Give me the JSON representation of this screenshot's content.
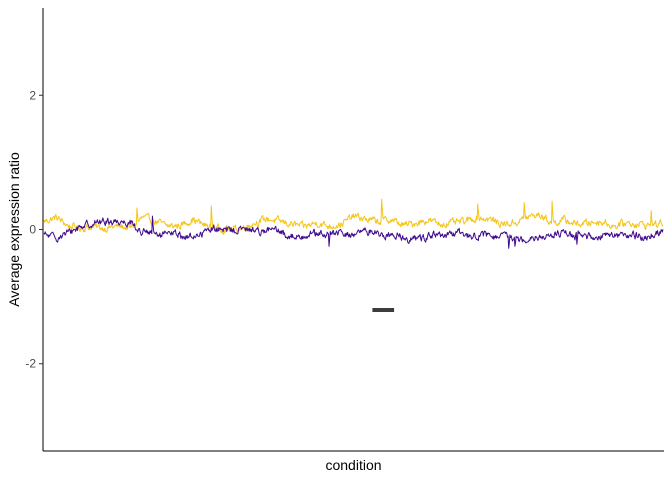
{
  "chart_data": {
    "type": "line",
    "title": "",
    "xlabel": "condition",
    "ylabel": "Average expression ratio",
    "ylim": [
      -3.3,
      3.3
    ],
    "yticks": [
      -2,
      0,
      2
    ],
    "x_ticks_shown": false,
    "grid": false,
    "legend": "none",
    "n_points": 1000,
    "series": [
      {
        "color": "#F5C518",
        "description": "values around 0 to +0.2, range approx -0.15 to +0.45",
        "anchors": [
          [
            0,
            0.12
          ],
          [
            20,
            0.18
          ],
          [
            40,
            0.05
          ],
          [
            60,
            0.02
          ],
          [
            80,
            0.04
          ],
          [
            100,
            0.02
          ],
          [
            120,
            0.05
          ],
          [
            140,
            0.02
          ],
          [
            160,
            0.18
          ],
          [
            180,
            0.12
          ],
          [
            200,
            0.05
          ],
          [
            220,
            0.06
          ],
          [
            240,
            0.15
          ],
          [
            260,
            0.06
          ],
          [
            280,
            0.02
          ],
          [
            300,
            0.0
          ],
          [
            320,
            0.02
          ],
          [
            340,
            0.1
          ],
          [
            360,
            0.16
          ],
          [
            380,
            0.12
          ],
          [
            400,
            0.08
          ],
          [
            420,
            0.04
          ],
          [
            440,
            0.1
          ],
          [
            460,
            0.05
          ],
          [
            480,
            0.08
          ],
          [
            500,
            0.2
          ],
          [
            520,
            0.15
          ],
          [
            540,
            0.12
          ],
          [
            560,
            0.15
          ],
          [
            580,
            0.06
          ],
          [
            600,
            0.1
          ],
          [
            620,
            0.14
          ],
          [
            640,
            0.08
          ],
          [
            660,
            0.1
          ],
          [
            680,
            0.12
          ],
          [
            700,
            0.18
          ],
          [
            720,
            0.15
          ],
          [
            740,
            0.08
          ],
          [
            760,
            0.1
          ],
          [
            780,
            0.18
          ],
          [
            800,
            0.22
          ],
          [
            820,
            0.1
          ],
          [
            840,
            0.14
          ],
          [
            860,
            0.08
          ],
          [
            880,
            0.1
          ],
          [
            900,
            0.12
          ],
          [
            920,
            0.05
          ],
          [
            940,
            0.1
          ],
          [
            960,
            0.08
          ],
          [
            980,
            0.06
          ],
          [
            999,
            0.1
          ]
        ],
        "spikes": [
          [
            150,
            0.32
          ],
          [
            270,
            0.35
          ],
          [
            545,
            0.45
          ],
          [
            700,
            0.38
          ],
          [
            775,
            0.4
          ],
          [
            820,
            0.42
          ],
          [
            980,
            0.28
          ]
        ]
      },
      {
        "color": "#3F0A8C",
        "description": "values around 0 to -0.15, range approx -0.28 to +0.22",
        "anchors": [
          [
            0,
            -0.08
          ],
          [
            20,
            -0.12
          ],
          [
            40,
            -0.05
          ],
          [
            60,
            0.05
          ],
          [
            80,
            0.1
          ],
          [
            100,
            0.12
          ],
          [
            120,
            0.12
          ],
          [
            145,
            0.1
          ],
          [
            150,
            -0.02
          ],
          [
            170,
            -0.05
          ],
          [
            190,
            -0.1
          ],
          [
            210,
            -0.05
          ],
          [
            230,
            -0.12
          ],
          [
            250,
            -0.08
          ],
          [
            270,
            0.02
          ],
          [
            290,
            -0.02
          ],
          [
            310,
            0.0
          ],
          [
            330,
            0.0
          ],
          [
            350,
            -0.02
          ],
          [
            370,
            0.0
          ],
          [
            390,
            -0.08
          ],
          [
            410,
            -0.12
          ],
          [
            430,
            -0.05
          ],
          [
            450,
            -0.08
          ],
          [
            470,
            -0.05
          ],
          [
            490,
            -0.08
          ],
          [
            510,
            -0.05
          ],
          [
            530,
            -0.02
          ],
          [
            550,
            -0.1
          ],
          [
            570,
            -0.08
          ],
          [
            590,
            -0.15
          ],
          [
            610,
            -0.12
          ],
          [
            630,
            -0.08
          ],
          [
            650,
            -0.1
          ],
          [
            670,
            -0.05
          ],
          [
            690,
            -0.1
          ],
          [
            710,
            -0.08
          ],
          [
            730,
            -0.12
          ],
          [
            750,
            -0.1
          ],
          [
            770,
            -0.15
          ],
          [
            790,
            -0.1
          ],
          [
            810,
            -0.12
          ],
          [
            830,
            -0.05
          ],
          [
            850,
            -0.08
          ],
          [
            870,
            -0.1
          ],
          [
            890,
            -0.12
          ],
          [
            910,
            -0.05
          ],
          [
            930,
            -0.1
          ],
          [
            950,
            -0.08
          ],
          [
            970,
            -0.12
          ],
          [
            999,
            -0.02
          ]
        ],
        "spikes": [
          [
            175,
            0.2
          ],
          [
            460,
            -0.25
          ],
          [
            750,
            -0.28
          ],
          [
            760,
            -0.25
          ],
          [
            860,
            -0.22
          ]
        ]
      }
    ],
    "segment": {
      "color": "#3C3C3C",
      "x": [
        530,
        565
      ],
      "y": -1.2
    }
  }
}
